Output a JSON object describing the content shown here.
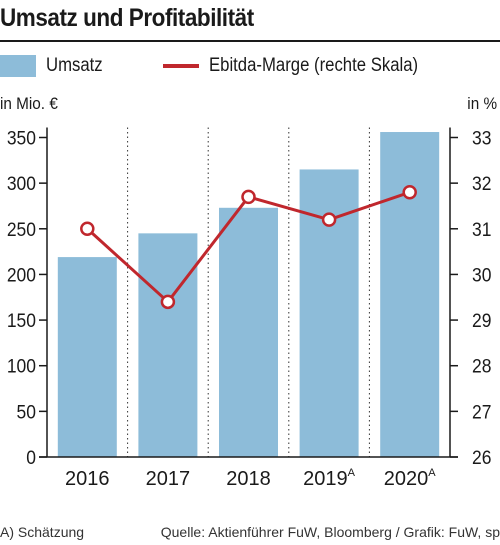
{
  "title": "Umsatz und Profitabilität",
  "legend": {
    "bar_label": "Umsatz",
    "line_label": "Ebitda-Marge (rechte Skala)"
  },
  "colors": {
    "bar": "#8dbcd9",
    "line": "#c0272d",
    "marker_fill": "#ffffff",
    "grid": "#333333"
  },
  "units": {
    "left": "in Mio. €",
    "right": "in %"
  },
  "footer": {
    "note": "A) Schätzung",
    "source": "Quelle: Aktienführer FuW, Bloomberg / Grafik: FuW, sp"
  },
  "chart_data": {
    "type": "bar",
    "categories": [
      "2016",
      "2017",
      "2018",
      "2019",
      "2020"
    ],
    "category_superscripts": [
      "",
      "",
      "",
      "A",
      "A"
    ],
    "series": [
      {
        "name": "Umsatz",
        "type": "bar",
        "axis": "left",
        "values": [
          219,
          245,
          273,
          315,
          356
        ]
      },
      {
        "name": "Ebitda-Marge (rechte Skala)",
        "type": "line",
        "axis": "right",
        "values": [
          31.0,
          29.4,
          31.7,
          31.2,
          31.8
        ]
      }
    ],
    "left_axis": {
      "label": "in Mio. €",
      "min": 0,
      "max": 350,
      "ticks": [
        0,
        50,
        100,
        150,
        200,
        250,
        300,
        350
      ]
    },
    "right_axis": {
      "label": "in %",
      "min": 26,
      "max": 33,
      "ticks": [
        26,
        27,
        28,
        29,
        30,
        31,
        32,
        33
      ]
    },
    "grid": "vertical-dotted",
    "legend_position": "top"
  }
}
